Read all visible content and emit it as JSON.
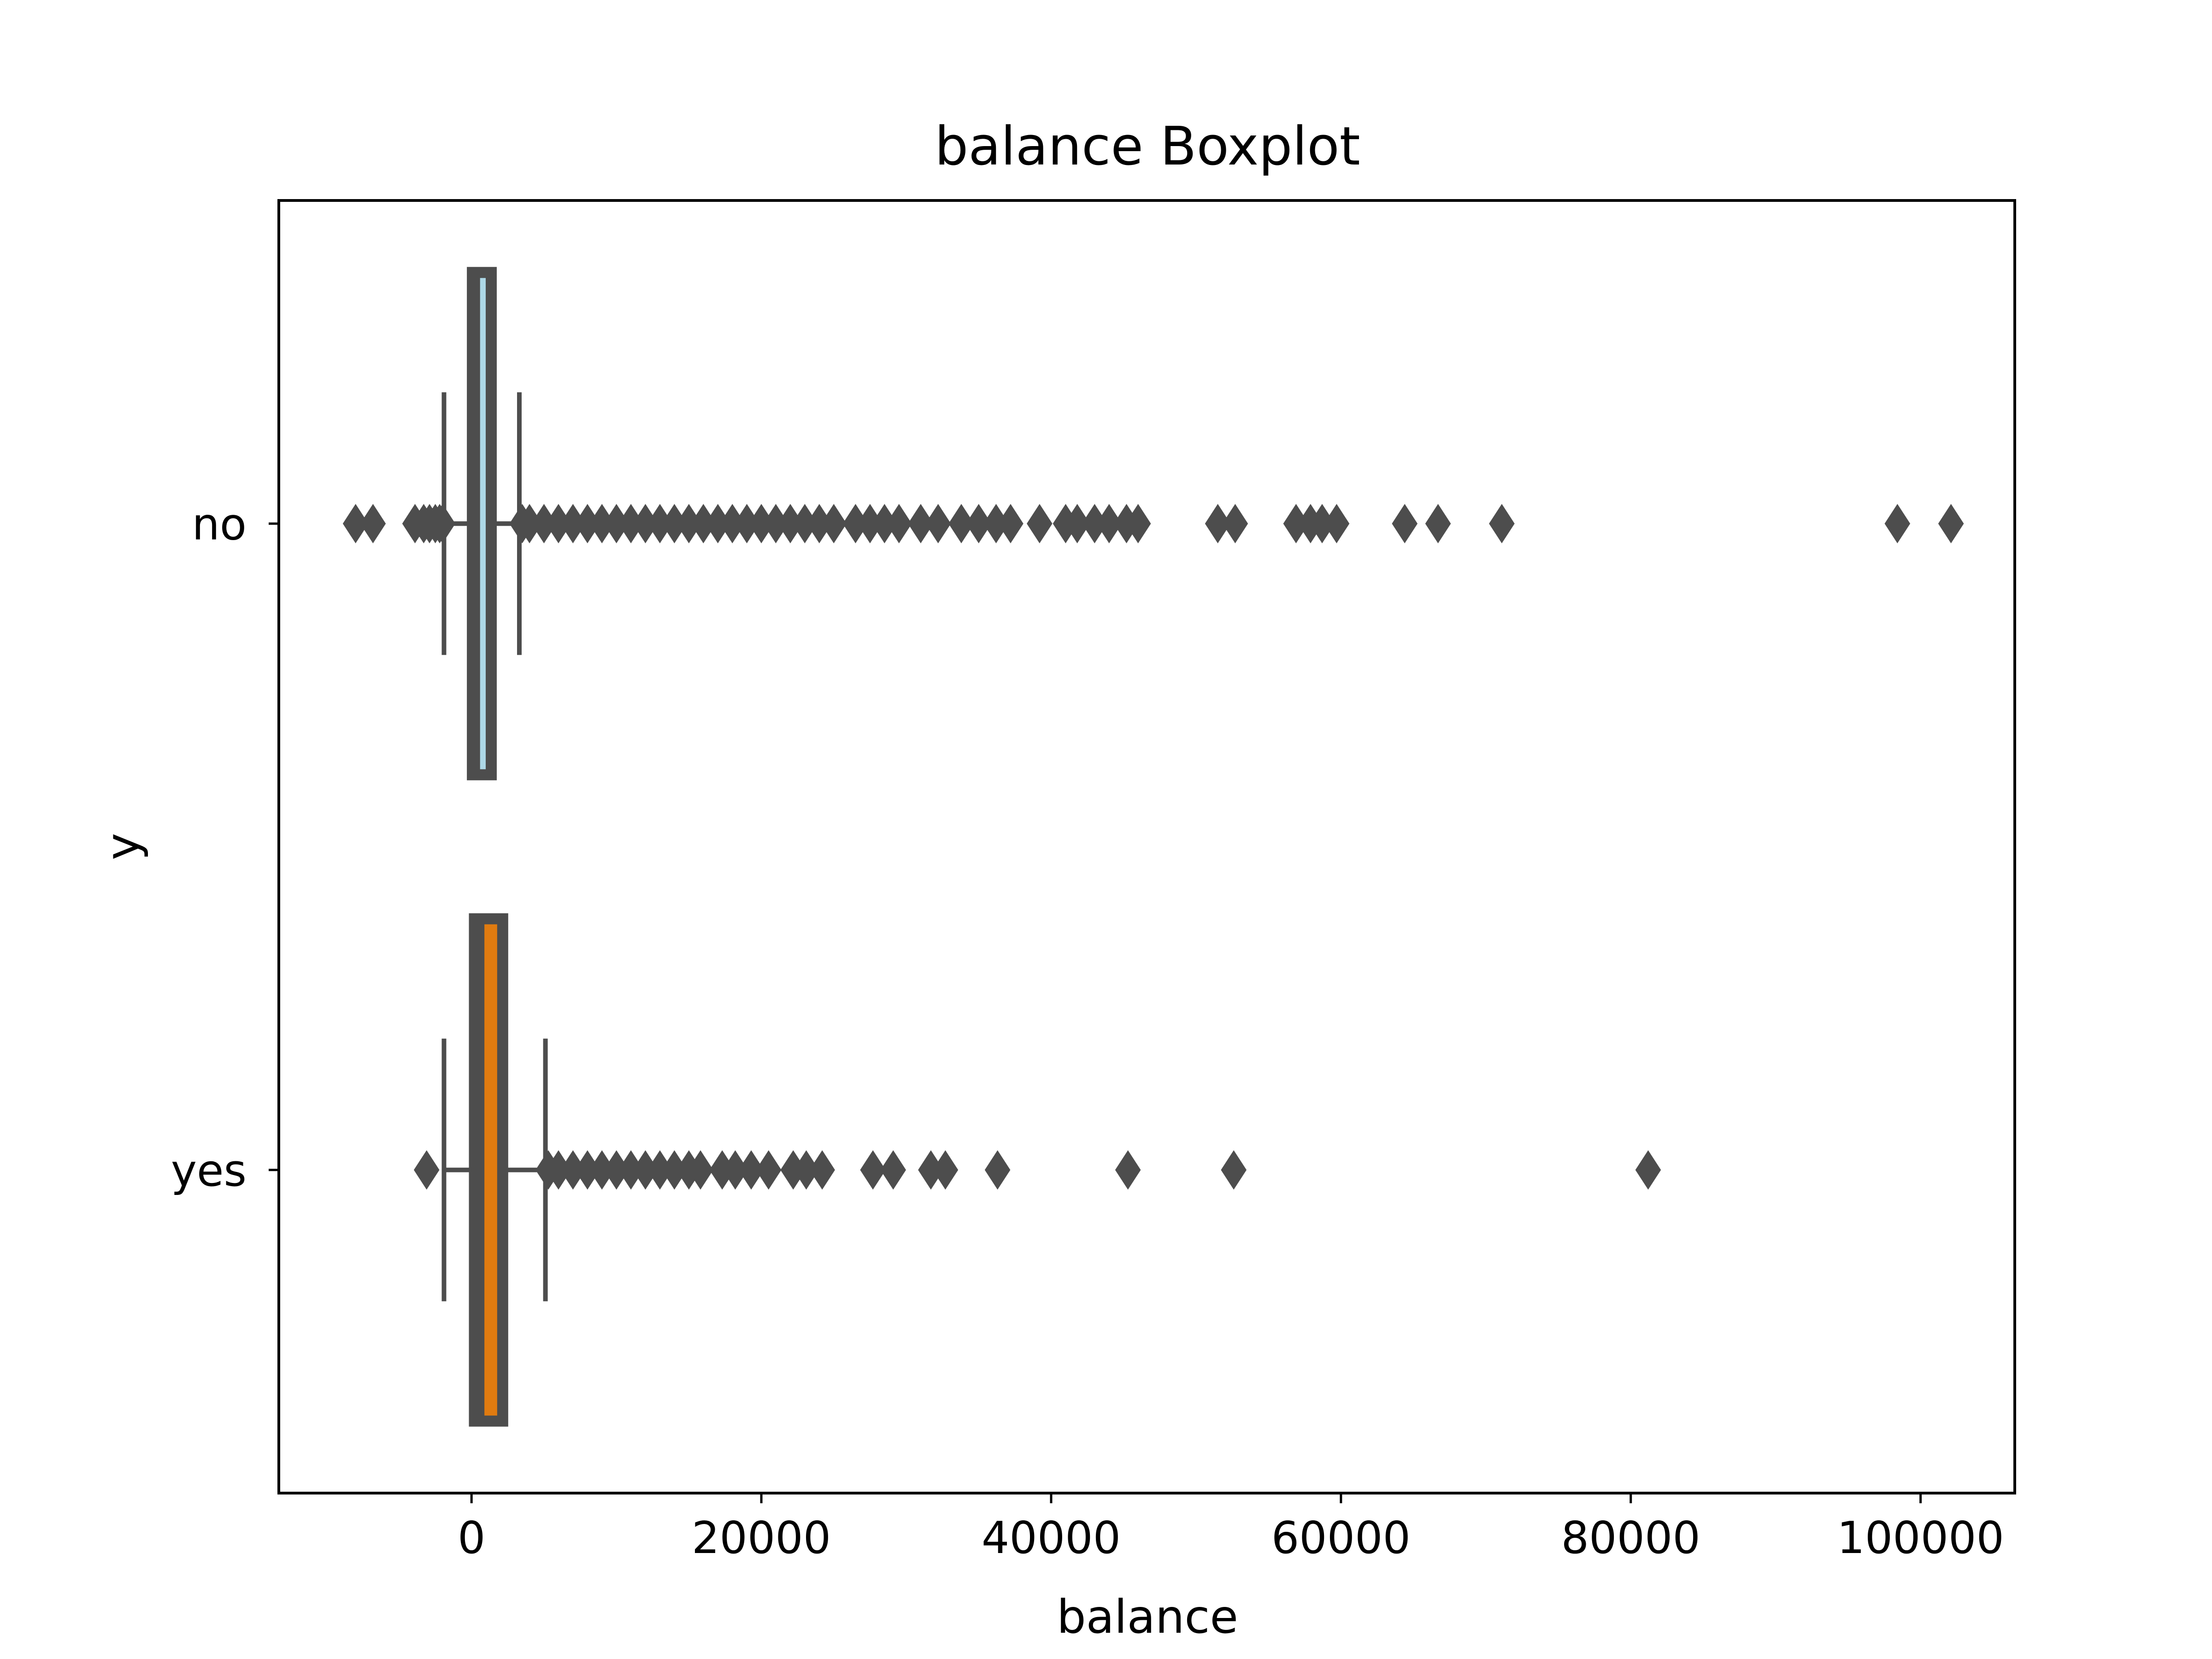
{
  "chart_data": {
    "type": "boxplot",
    "orientation": "horizontal",
    "title": "balance Boxplot",
    "xlabel": "balance",
    "ylabel": "y",
    "xlim": [
      -13300,
      106500
    ],
    "xticks": [
      0,
      20000,
      40000,
      60000,
      80000,
      100000
    ],
    "xtick_labels": [
      "0",
      "20000",
      "40000",
      "60000",
      "80000",
      "100000"
    ],
    "categories": [
      "no",
      "yes"
    ],
    "grid": false,
    "legend": "none",
    "series": [
      {
        "category": "no",
        "color": "#add8e6",
        "edge_color": "#4d4d4d",
        "whisker_low": -1900,
        "q1": 60,
        "median": 430,
        "q3": 1360,
        "whisker_high": 3300,
        "outliers": [
          -8000,
          -6800,
          -3900,
          -3300,
          -2900,
          -2500,
          -2200,
          -2000,
          3500,
          4000,
          5000,
          6000,
          7000,
          8000,
          9000,
          10000,
          11000,
          12000,
          13000,
          14000,
          15000,
          16000,
          17000,
          18000,
          19000,
          20000,
          21000,
          22000,
          23000,
          24000,
          25000,
          26500,
          27500,
          28500,
          29500,
          31000,
          32200,
          33800,
          35000,
          36200,
          37200,
          39200,
          41000,
          41800,
          43000,
          44000,
          45200,
          46000,
          51500,
          52700,
          56900,
          57900,
          58700,
          59700,
          64400,
          66700,
          71100,
          98400,
          102100
        ]
      },
      {
        "category": "yes",
        "color": "#e07b10",
        "edge_color": "#4d4d4d",
        "whisker_low": -1900,
        "q1": 200,
        "median": 730,
        "q3": 2150,
        "whisker_high": 5100,
        "outliers": [
          -3100,
          5300,
          6000,
          7000,
          8000,
          9000,
          10000,
          11000,
          12000,
          13000,
          14000,
          15000,
          15800,
          17300,
          18200,
          19300,
          20500,
          22200,
          23100,
          24200,
          27700,
          29100,
          31700,
          32700,
          36300,
          45300,
          52600,
          81200
        ]
      }
    ]
  }
}
